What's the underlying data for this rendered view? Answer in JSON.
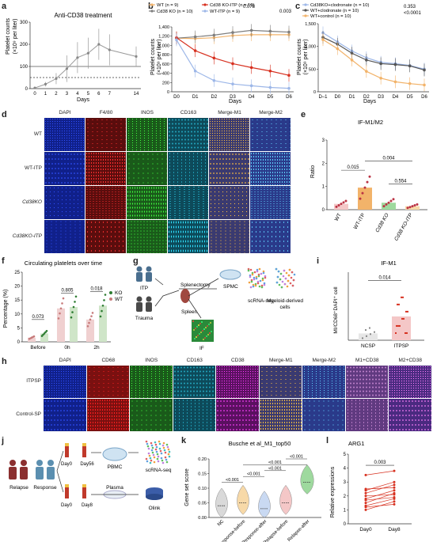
{
  "panels": {
    "a": "a",
    "b": "b",
    "c": "c",
    "d": "d",
    "e": "e",
    "f": "f",
    "g": "g",
    "h": "h",
    "i": "i",
    "j": "j",
    "k": "k",
    "l": "l"
  },
  "a": {
    "title": "Anti-CD38 treatment",
    "ylabel_line1": "Platelet counts",
    "ylabel_line2": "(×10⁹ per liter)",
    "xlabel": "Days",
    "xticks": [
      "0",
      "1",
      "2",
      "3",
      "4",
      "5",
      "6",
      "7",
      "14"
    ],
    "yticks": [
      "0",
      "100",
      "200",
      "300"
    ],
    "chart_data": {
      "type": "line",
      "x": [
        "0",
        "1",
        "2",
        "3",
        "4",
        "5",
        "6",
        "7",
        "14"
      ],
      "values": [
        3,
        20,
        45,
        90,
        140,
        160,
        200,
        175,
        145
      ],
      "err": [
        3,
        10,
        25,
        60,
        70,
        70,
        70,
        70,
        45
      ],
      "reference_lines": [
        100,
        50
      ],
      "ylim": [
        0,
        300
      ]
    }
  },
  "b": {
    "legend": [
      {
        "name": "WT (n = 9)",
        "color": "#f2b36a"
      },
      {
        "name": "Cd38 KO (n = 10)",
        "color": "#7f7f7f"
      },
      {
        "name": "Cd38 KO-ITP (n = 10)",
        "color": "#d7301f"
      },
      {
        "name": "WT-ITP (n = 9)",
        "color": "#9db7e8"
      }
    ],
    "p1": "0.078",
    "p2": "0.003",
    "ylabel_line1": "Platelet counts",
    "ylabel_line2": "(×10⁹ per liter)",
    "xlabel": "Days",
    "xticks": [
      "D0",
      "D1",
      "D2",
      "D3",
      "D4",
      "D5",
      "D6"
    ],
    "yticks": [
      "0",
      "200",
      "400",
      "600",
      "800",
      "1,000",
      "1,200",
      "1,400"
    ],
    "chart_data": {
      "type": "line",
      "categories": [
        "D0",
        "D1",
        "D2",
        "D3",
        "D4",
        "D5",
        "D6"
      ],
      "ylim": [
        0,
        1500
      ],
      "series": [
        {
          "name": "WT (n = 9)",
          "values": [
            1240,
            1230,
            1250,
            1300,
            1320,
            1320,
            1320
          ]
        },
        {
          "name": "Cd38 KO (n = 10)",
          "values": [
            1240,
            1270,
            1310,
            1370,
            1420,
            1400,
            1380
          ]
        },
        {
          "name": "Cd38 KO-ITP (n = 10)",
          "values": [
            1250,
            950,
            780,
            650,
            560,
            480,
            380
          ]
        },
        {
          "name": "WT-ITP (n = 9)",
          "values": [
            1200,
            480,
            260,
            180,
            140,
            100,
            80
          ]
        }
      ]
    }
  },
  "c": {
    "legend": [
      {
        "name": "Cd38KO+clodronate (n = 10)",
        "color": "#9db7e8"
      },
      {
        "name": "WT+clodronate (n = 10)",
        "color": "#555555"
      },
      {
        "name": "WT+control (n = 10)",
        "color": "#f2b36a"
      }
    ],
    "p1": "0.353",
    "p2": "<0.0001",
    "ylabel_line1": "Platelet counts",
    "ylabel_line2": "(×10⁹ per liter)",
    "xlabel": "Days",
    "xticks": [
      "D–1",
      "D0",
      "D1",
      "D2",
      "D3",
      "D4",
      "D5",
      "D6"
    ],
    "yticks": [
      "0",
      "500",
      "1,000",
      "1,500"
    ],
    "chart_data": {
      "type": "line",
      "categories": [
        "D–1",
        "D0",
        "D1",
        "D2",
        "D3",
        "D4",
        "D5",
        "D6"
      ],
      "ylim": [
        0,
        1500
      ],
      "series": [
        {
          "name": "Cd38KO+clodronate (n = 10)",
          "values": [
            1300,
            1100,
            900,
            750,
            650,
            620,
            580,
            500
          ]
        },
        {
          "name": "WT+clodronate (n = 10)",
          "values": [
            1200,
            1050,
            850,
            700,
            620,
            600,
            570,
            480
          ]
        },
        {
          "name": "WT+control (n = 10)",
          "values": [
            1150,
            950,
            700,
            450,
            300,
            220,
            180,
            150
          ]
        }
      ]
    }
  },
  "d": {
    "columns": [
      "DAPI",
      "F4/80",
      "INOS",
      "CD163",
      "Merge-M1",
      "Merge-M2"
    ],
    "rows": [
      "WT",
      "WT-ITP",
      "Cd38KO",
      "Cd38KO-ITP"
    ]
  },
  "e": {
    "title": "IF-M1/M2",
    "ylabel": "Ratio",
    "yticks": [
      "0",
      "1",
      "2",
      "3"
    ],
    "p_values": [
      "0.015",
      "0.004",
      "0.554"
    ],
    "chart_data": {
      "type": "bar",
      "categories": [
        "WT",
        "WT-ITP",
        "Cd38 KO",
        "Cd38 KO-ITP"
      ],
      "values": [
        0.25,
        0.95,
        0.3,
        0.15
      ],
      "ylim": [
        0,
        3
      ]
    }
  },
  "f": {
    "title": "Circulating platelets over time",
    "ylabel": "Percentage (%)",
    "yticks": [
      "0",
      "5",
      "10",
      "15",
      "20",
      "25"
    ],
    "legend": [
      {
        "name": "KO",
        "color": "#2e7d32"
      },
      {
        "name": "WT",
        "color": "#c77b7b"
      }
    ],
    "p_values": [
      "0.073",
      "0.805",
      "0.018"
    ],
    "chart_data": {
      "type": "bar",
      "categories": [
        "Before",
        "0h",
        "2h"
      ],
      "ylim": [
        0,
        25
      ],
      "series": [
        {
          "name": "WT",
          "values": [
            1.5,
            12,
            8
          ]
        },
        {
          "name": "KO",
          "values": [
            3,
            12.5,
            13
          ]
        }
      ]
    }
  },
  "g": {
    "itp": "ITP",
    "trauma": "Trauma",
    "splenectomy": "Splenectomy",
    "spmc": "SPMC",
    "spleen": "Spleen",
    "scrna": "scRNA-seq",
    "myeloid": "Myeloid-derived cells",
    "if": "IF"
  },
  "i": {
    "title": "IF-M1",
    "ylabel": "MI/CD68⁺DAPI⁺ cell",
    "p": "0.014",
    "chart_data": {
      "type": "bar",
      "categories": [
        "NCSP",
        "ITPSP"
      ],
      "values": [
        0.1,
        0.35
      ],
      "ylim": [
        0,
        1.0
      ]
    }
  },
  "h": {
    "columns": [
      "DAPI",
      "CD68",
      "INOS",
      "CD163",
      "CD38",
      "Merge-M1",
      "Merge-M2",
      "M1+CD38",
      "M2+CD38"
    ],
    "rows": [
      "ITPSP",
      "Control-SP"
    ]
  },
  "j": {
    "relapse": "Relapse",
    "response": "Response",
    "day0a": "Day0",
    "day56": "Day56",
    "day0b": "Day0",
    "day8": "Day8",
    "pbmc": "PBMC",
    "plasma": "Plasma",
    "scrna": "scRNA-seq",
    "olink": "Olink"
  },
  "k": {
    "title": "Busche et al_M1_top50",
    "ylabel": "Gene set score",
    "yticks": [
      "0.00",
      "0.05",
      "0.10",
      "0.15",
      "0.20"
    ],
    "p_values": [
      "<0.001",
      "<0.001",
      "<0.001",
      "<0.001",
      "<0.001"
    ],
    "chart_data": {
      "type": "violin",
      "categories": [
        "NC",
        "Response-before",
        "Response-after",
        "Relapse-before",
        "Relapse-after"
      ],
      "medians": [
        0.04,
        0.05,
        0.03,
        0.05,
        0.12
      ],
      "ylim": [
        0,
        0.2
      ]
    }
  },
  "l": {
    "title": "ARG1",
    "ylabel": "Relative expressions",
    "yticks": [
      "0",
      "1",
      "2",
      "3",
      "4",
      "5"
    ],
    "p": "0.003",
    "xticks": [
      "Day0",
      "Day8"
    ],
    "chart_data": {
      "type": "paired",
      "categories": [
        "Day0",
        "Day8"
      ],
      "pairs": [
        [
          1.0,
          1.6
        ],
        [
          1.2,
          1.4
        ],
        [
          1.3,
          1.8
        ],
        [
          1.5,
          2.2
        ],
        [
          1.7,
          1.9
        ],
        [
          1.8,
          2.4
        ],
        [
          2.0,
          2.1
        ],
        [
          2.2,
          2.8
        ],
        [
          2.4,
          3.0
        ],
        [
          2.5,
          2.6
        ],
        [
          3.5,
          3.8
        ]
      ],
      "ylim": [
        0,
        5
      ]
    }
  }
}
